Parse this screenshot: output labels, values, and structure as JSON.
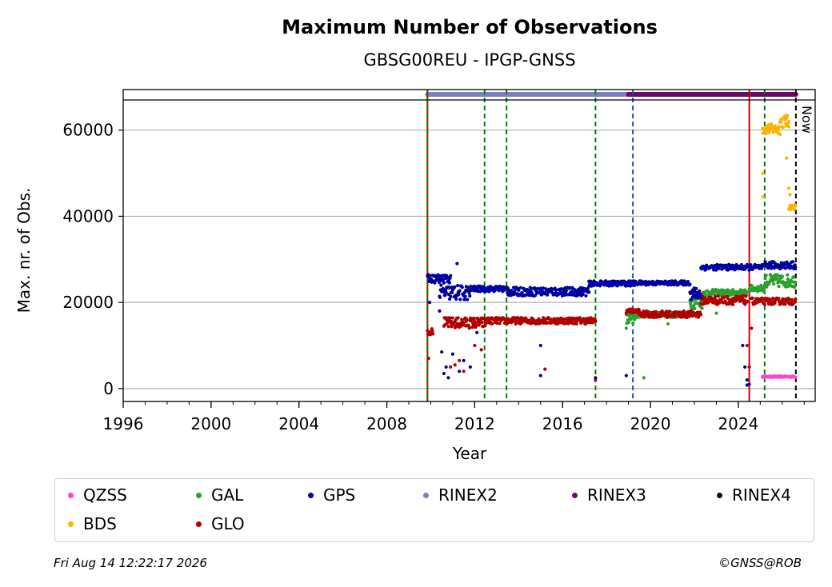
{
  "chart_data": {
    "type": "scatter",
    "title": "Maximum Number of Observations",
    "subtitle": "GBSG00REU - IPGP-GNSS",
    "xlabel": "Year",
    "ylabel": "Max. nr. of Obs.",
    "xlim": [
      1996,
      2027.5
    ],
    "ylim": [
      -3000,
      67000
    ],
    "x_ticks": [
      "1996",
      "2000",
      "2004",
      "2008",
      "2012",
      "2016",
      "2020",
      "2024"
    ],
    "y_ticks": [
      "0",
      "20000",
      "40000",
      "60000"
    ],
    "grid": "horizontal",
    "now_label": "Now",
    "now_x": 2026.62,
    "legend_position": "bottom",
    "rinex_bar": [
      {
        "name": "RINEX2",
        "color": "#8080c0",
        "x_start": 2009.85,
        "x_end": 2019.0
      },
      {
        "name": "RINEX3",
        "color": "#6a0a6a",
        "x_start": 2019.0,
        "x_end": 2026.62
      }
    ],
    "event_lines": [
      {
        "x": 2009.85,
        "color": "#cc0000",
        "style": "solid"
      },
      {
        "x": 2009.85,
        "color": "#008000",
        "style": "dashed"
      },
      {
        "x": 2012.45,
        "color": "#008000",
        "style": "dashed"
      },
      {
        "x": 2013.45,
        "color": "#008000",
        "style": "dashed"
      },
      {
        "x": 2017.5,
        "color": "#008000",
        "style": "dashed"
      },
      {
        "x": 2019.2,
        "color": "#1060b0",
        "style": "dashed"
      },
      {
        "x": 2024.5,
        "color": "#cc0000",
        "style": "solid"
      },
      {
        "x": 2025.2,
        "color": "#008000",
        "style": "dashed"
      }
    ],
    "series": [
      {
        "name": "QZSS",
        "color": "#ff44cc",
        "segments": [
          [
            2025.1,
            2026.6,
            2600,
            2900
          ]
        ],
        "outliers": []
      },
      {
        "name": "BDS",
        "color": "#ffb300",
        "segments": [
          [
            2025.1,
            2025.9,
            59000,
            61500
          ],
          [
            2025.9,
            2026.3,
            60500,
            63500
          ],
          [
            2026.3,
            2026.6,
            41500,
            42800
          ]
        ],
        "outliers": [
          [
            2025.12,
            50000
          ],
          [
            2025.13,
            44500
          ],
          [
            2026.2,
            53500
          ],
          [
            2026.3,
            46500
          ],
          [
            2026.35,
            45000
          ],
          [
            2026.3,
            62000
          ]
        ]
      },
      {
        "name": "GAL",
        "color": "#2ca02c",
        "segments": [
          [
            2018.9,
            2019.3,
            14500,
            17500
          ],
          [
            2019.3,
            2021.8,
            16500,
            17800
          ],
          [
            2021.8,
            2022.4,
            18500,
            21500
          ],
          [
            2022.4,
            2024.4,
            21500,
            23000
          ],
          [
            2024.5,
            2025.2,
            22500,
            24000
          ],
          [
            2025.2,
            2026.6,
            23500,
            26500
          ]
        ],
        "outliers": [
          [
            2019.7,
            2500
          ],
          [
            2018.9,
            14000
          ],
          [
            2020.8,
            15000
          ],
          [
            2023.0,
            17500
          ]
        ]
      },
      {
        "name": "GLO",
        "color": "#b00000",
        "segments": [
          [
            2009.85,
            2010.1,
            12500,
            14000
          ],
          [
            2010.6,
            2012.5,
            14000,
            16500
          ],
          [
            2012.5,
            2017.5,
            15000,
            16500
          ],
          [
            2018.9,
            2019.5,
            17500,
            18500
          ],
          [
            2019.5,
            2022.3,
            16500,
            18000
          ],
          [
            2022.3,
            2024.4,
            19500,
            21500
          ],
          [
            2024.6,
            2026.6,
            19500,
            21000
          ]
        ],
        "outliers": [
          [
            2009.9,
            7000
          ],
          [
            2010.9,
            5000
          ],
          [
            2011.3,
            6500
          ],
          [
            2011.1,
            5500
          ],
          [
            2011.5,
            4000
          ],
          [
            2012.0,
            10000
          ],
          [
            2012.3,
            9000
          ],
          [
            2015.2,
            4500
          ],
          [
            2017.5,
            2000
          ],
          [
            2024.4,
            10000
          ],
          [
            2024.5,
            5000
          ],
          [
            2024.6,
            14000
          ]
        ]
      },
      {
        "name": "GPS",
        "color": "#0000a0",
        "segments": [
          [
            2009.85,
            2010.9,
            24500,
            26500
          ],
          [
            2010.4,
            2011.8,
            20500,
            24000
          ],
          [
            2011.8,
            2013.5,
            22500,
            23800
          ],
          [
            2013.5,
            2017.2,
            21500,
            23500
          ],
          [
            2017.2,
            2019.3,
            23800,
            25000
          ],
          [
            2019.3,
            2021.8,
            24000,
            25000
          ],
          [
            2021.8,
            2022.3,
            20500,
            23500
          ],
          [
            2022.3,
            2024.4,
            27500,
            28800
          ],
          [
            2024.4,
            2025.2,
            27500,
            28800
          ],
          [
            2025.2,
            2026.6,
            27800,
            29500
          ]
        ],
        "outliers": [
          [
            2009.95,
            20000
          ],
          [
            2010.4,
            18000
          ],
          [
            2010.5,
            8500
          ],
          [
            2010.6,
            3500
          ],
          [
            2010.7,
            5000
          ],
          [
            2010.8,
            2500
          ],
          [
            2011.0,
            8000
          ],
          [
            2011.2,
            29000
          ],
          [
            2011.3,
            4000
          ],
          [
            2011.5,
            6500
          ],
          [
            2011.8,
            5000
          ],
          [
            2012.1,
            13000
          ],
          [
            2015.0,
            10000
          ],
          [
            2015.0,
            3000
          ],
          [
            2017.5,
            2500
          ],
          [
            2018.9,
            3000
          ],
          [
            2024.2,
            10000
          ],
          [
            2024.3,
            5000
          ],
          [
            2024.4,
            2000
          ],
          [
            2024.5,
            1000
          ],
          [
            2024.4,
            800
          ]
        ]
      }
    ]
  },
  "legend": {
    "items": [
      {
        "label": "QZSS",
        "color": "#ff44cc"
      },
      {
        "label": "GAL",
        "color": "#2ca02c"
      },
      {
        "label": "GPS",
        "color": "#0000a0"
      },
      {
        "label": "RINEX2",
        "color": "#8080c0"
      },
      {
        "label": "RINEX3",
        "color": "#6a0a6a"
      },
      {
        "label": "RINEX4",
        "color": "#1a0010"
      },
      {
        "label": "BDS",
        "color": "#ffb300"
      },
      {
        "label": "GLO",
        "color": "#b00000"
      }
    ]
  },
  "footer": {
    "timestamp": "Fri Aug 14 12:22:17 2026",
    "copyright": "©GNSS@ROB"
  }
}
